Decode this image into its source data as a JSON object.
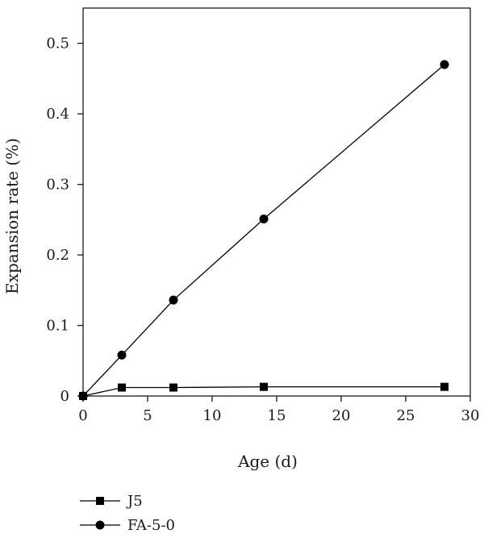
{
  "chart_data": {
    "type": "line",
    "xlabel": "Age (d)",
    "ylabel": "Expansion rate (%)",
    "xlim": [
      0,
      30
    ],
    "ylim": [
      0,
      0.55
    ],
    "xticks": [
      0,
      5,
      10,
      15,
      20,
      25,
      30
    ],
    "yticks": [
      0,
      0.1,
      0.2,
      0.3,
      0.4,
      0.5
    ],
    "xtick_labels": [
      "0",
      "5",
      "10",
      "15",
      "20",
      "25",
      "30"
    ],
    "ytick_labels": [
      "0",
      "0.1",
      "0.2",
      "0.3",
      "0.4",
      "0.5"
    ],
    "grid": false,
    "legend_position": "bottom-left, below plot",
    "series": [
      {
        "name": "J5",
        "marker": "square",
        "color": "#000000",
        "x": [
          0,
          3,
          7,
          14,
          28
        ],
        "y": [
          0,
          0.012,
          0.012,
          0.013,
          0.013
        ]
      },
      {
        "name": "FA-5-0",
        "marker": "circle",
        "color": "#000000",
        "x": [
          0,
          3,
          7,
          14,
          28
        ],
        "y": [
          0,
          0.058,
          0.136,
          0.251,
          0.47
        ]
      }
    ]
  }
}
